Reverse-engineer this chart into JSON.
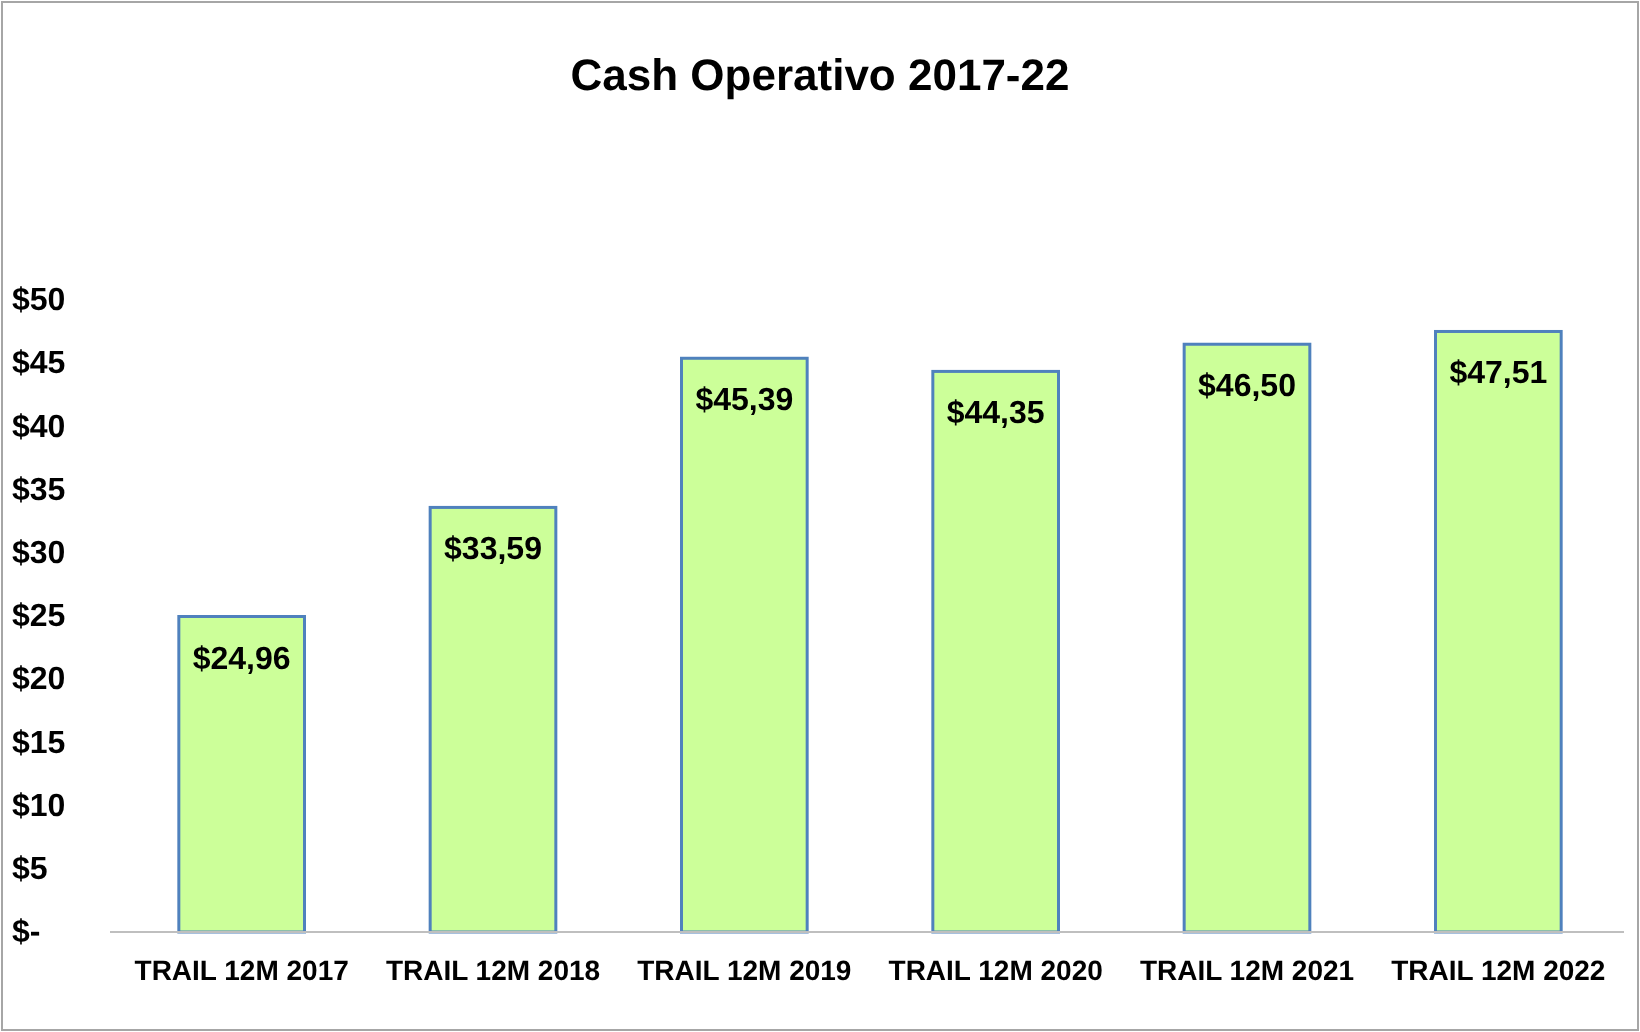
{
  "chart_data": {
    "type": "bar",
    "title": "Cash Operativo 2017-22",
    "categories": [
      "TRAIL 12M 2017",
      "TRAIL 12M 2018",
      "TRAIL 12M 2019",
      "TRAIL 12M 2020",
      "TRAIL 12M 2021",
      "TRAIL 12M 2022"
    ],
    "values": [
      24.96,
      33.59,
      45.39,
      44.35,
      46.5,
      47.51
    ],
    "value_labels": [
      "$24,96",
      "$33,59",
      "$45,39",
      "$44,35",
      "$46,50",
      "$47,51"
    ],
    "color": "#ccff99",
    "ylim": [
      0,
      50
    ],
    "yticks": [
      {
        "value": 0,
        "label": "$-"
      },
      {
        "value": 5,
        "label": "$5"
      },
      {
        "value": 10,
        "label": "$10"
      },
      {
        "value": 15,
        "label": "$15"
      },
      {
        "value": 20,
        "label": "$20"
      },
      {
        "value": 25,
        "label": "$25"
      },
      {
        "value": 30,
        "label": "$30"
      },
      {
        "value": 35,
        "label": "$35"
      },
      {
        "value": 40,
        "label": "$40"
      },
      {
        "value": 45,
        "label": "$45"
      },
      {
        "value": 50,
        "label": "$50"
      }
    ],
    "grid": false
  }
}
